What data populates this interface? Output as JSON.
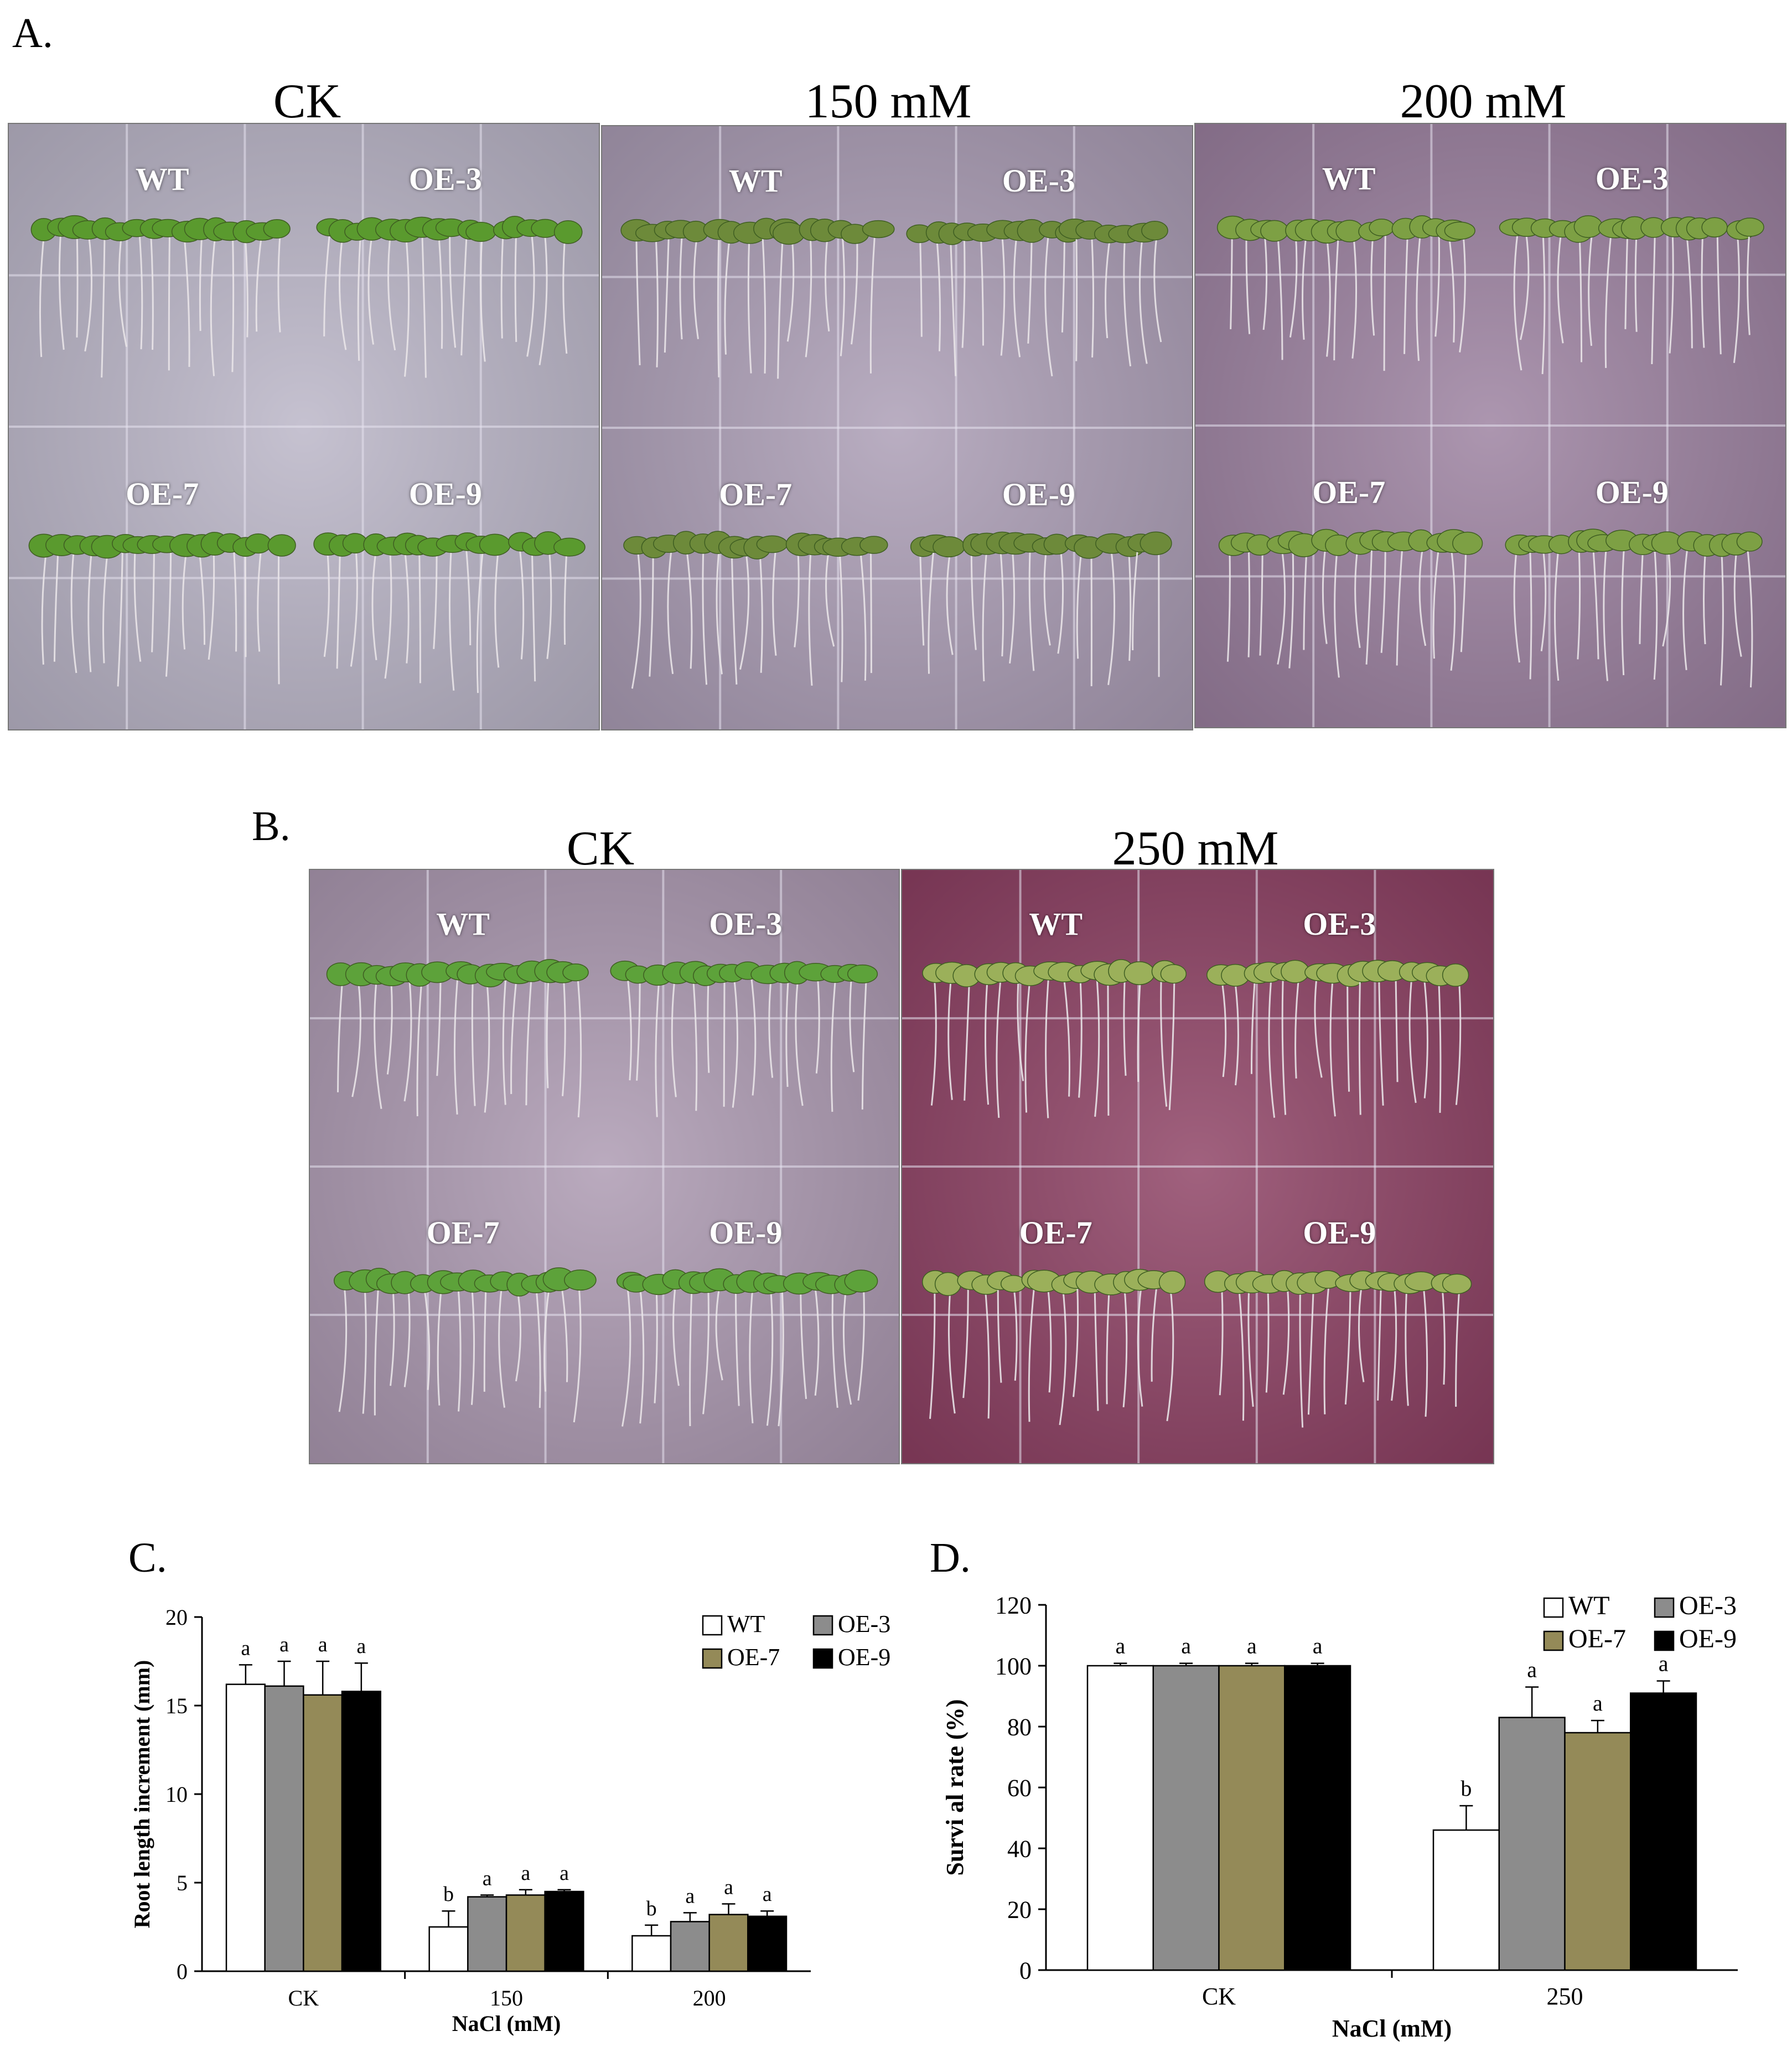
{
  "panels": {
    "A": {
      "letter": "A.",
      "plates": [
        {
          "condition": "CK",
          "tint": "#b9b4c6",
          "leaf": "#5a9a2e",
          "lines": [
            "WT",
            "OE-3",
            "OE-7",
            "OE-9"
          ]
        },
        {
          "condition": "150 mM",
          "tint": "#aa9cb4",
          "leaf": "#6d8a3a",
          "lines": [
            "WT",
            "OE-3",
            "OE-7",
            "OE-9"
          ]
        },
        {
          "condition": "200 mM",
          "tint": "#9a7f9e",
          "leaf": "#7da044",
          "lines": [
            "WT",
            "OE-3",
            "OE-7",
            "OE-9"
          ]
        }
      ]
    },
    "B": {
      "letter": "B.",
      "plates": [
        {
          "condition": "CK",
          "tint": "#ab98b0",
          "leaf": "#5da23a",
          "lines": [
            "WT",
            "OE-3",
            "OE-7",
            "OE-9"
          ]
        },
        {
          "condition": "250 mM",
          "tint": "#8c3f62",
          "leaf": "#9bb05a",
          "lines": [
            "WT",
            "OE-3",
            "OE-7",
            "OE-9"
          ]
        }
      ]
    }
  },
  "chart_data": [
    {
      "panel": "C.",
      "type": "bar",
      "categories": [
        "CK",
        "150",
        "200"
      ],
      "series": [
        {
          "name": "WT",
          "color": "#ffffff",
          "values": [
            16.2,
            2.5,
            2.0
          ],
          "errors": [
            1.1,
            0.9,
            0.6
          ],
          "letters": [
            "a",
            "b",
            "b"
          ]
        },
        {
          "name": "OE-3",
          "color": "#8c8c8c",
          "values": [
            16.1,
            4.2,
            2.8
          ],
          "errors": [
            1.4,
            0.1,
            0.5
          ],
          "letters": [
            "a",
            "a",
            "a"
          ]
        },
        {
          "name": "OE-7",
          "color": "#948a58",
          "values": [
            15.6,
            4.3,
            3.2
          ],
          "errors": [
            1.9,
            0.3,
            0.6
          ],
          "letters": [
            "a",
            "a",
            "a"
          ]
        },
        {
          "name": "OE-9",
          "color": "#000000",
          "values": [
            15.8,
            4.5,
            3.1
          ],
          "errors": [
            1.6,
            0.1,
            0.3
          ],
          "letters": [
            "a",
            "a",
            "a"
          ]
        }
      ],
      "xlabel": "NaCl (mM)",
      "ylabel": "Root length increment (mm)",
      "ylim": [
        0,
        20
      ],
      "yticks": [
        0,
        5,
        10,
        15,
        20
      ],
      "legend_position": "top-right"
    },
    {
      "panel": "D.",
      "type": "bar",
      "categories": [
        "CK",
        "250"
      ],
      "series": [
        {
          "name": "WT",
          "color": "#ffffff",
          "values": [
            100,
            46
          ],
          "errors": [
            0.8,
            8
          ],
          "letters": [
            "a",
            "b"
          ]
        },
        {
          "name": "OE-3",
          "color": "#8c8c8c",
          "values": [
            100,
            83
          ],
          "errors": [
            0.8,
            10
          ],
          "letters": [
            "a",
            "a"
          ]
        },
        {
          "name": "OE-7",
          "color": "#948a58",
          "values": [
            100,
            78
          ],
          "errors": [
            0.8,
            4
          ],
          "letters": [
            "a",
            "a"
          ]
        },
        {
          "name": "OE-9",
          "color": "#000000",
          "values": [
            100,
            91
          ],
          "errors": [
            0.8,
            4
          ],
          "letters": [
            "a",
            "a"
          ]
        }
      ],
      "xlabel": "NaCl (mM)",
      "ylabel": "Survi al rate (%)",
      "ylim": [
        0,
        120
      ],
      "yticks": [
        0,
        20,
        40,
        60,
        80,
        100,
        120
      ],
      "legend_position": "top-right"
    }
  ]
}
